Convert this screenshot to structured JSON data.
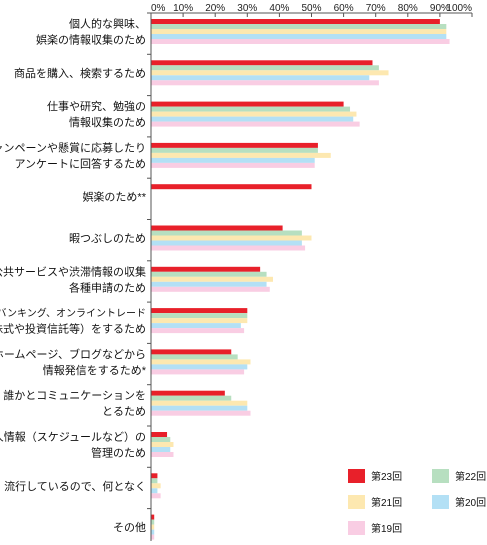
{
  "chart_data": {
    "type": "bar",
    "orientation": "horizontal",
    "xlim": [
      0,
      100
    ],
    "xtick_labels": [
      "0%",
      "10%",
      "20%",
      "30%",
      "40%",
      "50%",
      "60%",
      "70%",
      "80%",
      "90%",
      "100%"
    ],
    "grid": false,
    "legend_position": "bottom-right",
    "categories": [
      [
        "個人的な興味、",
        "娯楽の情報収集のため"
      ],
      [
        "商品を購入、検索するため"
      ],
      [
        "仕事や研究、勉強の",
        "情報収集のため"
      ],
      [
        "キャンペーンや懸賞に応募したり",
        "アンケートに回答するため"
      ],
      [
        "娯楽のため**"
      ],
      [
        "暇つぶしのため"
      ],
      [
        "公共サービスや渋滞情報の収集",
        "各種申請のため"
      ],
      [
        "ネットバンキング、オンライントレード",
        "（株式や投資信託等）をするため"
      ],
      [
        "ホームページ、ブログなどから",
        "情報発信をするため*"
      ],
      [
        "誰かとコミュニケーションを",
        "とるため"
      ],
      [
        "個人情報（スケジュールなど）の",
        "管理のため"
      ],
      [
        "流行しているので、何となく"
      ],
      [
        "その他"
      ]
    ],
    "series": [
      {
        "name": "第23回",
        "color": "#e8202a",
        "values": [
          90,
          69,
          60,
          52,
          50,
          41,
          34,
          30,
          25,
          23,
          5,
          2,
          1
        ]
      },
      {
        "name": "第22回",
        "color": "#b7dfc0",
        "values": [
          92,
          71,
          62,
          52,
          null,
          47,
          36,
          30,
          27,
          25,
          6,
          2,
          1
        ]
      },
      {
        "name": "第21回",
        "color": "#fde8b0",
        "values": [
          92,
          74,
          64,
          56,
          null,
          50,
          38,
          30,
          31,
          30,
          7,
          3,
          1
        ]
      },
      {
        "name": "第20回",
        "color": "#b3e0f5",
        "values": [
          92,
          68,
          63,
          51,
          null,
          47,
          36,
          28,
          30,
          30,
          6,
          2,
          1
        ]
      },
      {
        "name": "第19回",
        "color": "#f9cde3",
        "values": [
          93,
          71,
          65,
          51,
          null,
          48,
          37,
          29,
          29,
          31,
          7,
          3,
          1
        ]
      }
    ]
  }
}
